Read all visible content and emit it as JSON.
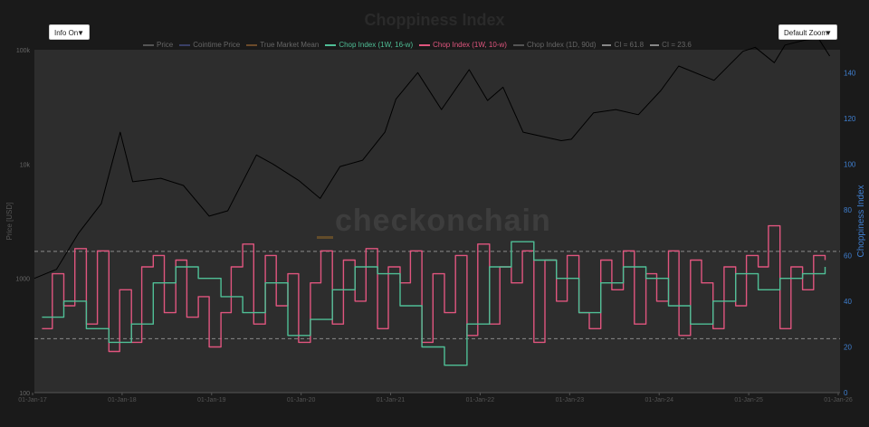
{
  "header": {
    "title": "Choppiness Index",
    "info_toggle": "Info On",
    "zoom_select": "Default Zoom"
  },
  "watermark": "checkonchain",
  "legend": [
    {
      "name": "Price",
      "color": "#555555",
      "dashed": false
    },
    {
      "name": "Cointime Price",
      "color": "#3a3f66",
      "dashed": false
    },
    {
      "name": "True Market Mean",
      "color": "#6b4a2a",
      "dashed": false
    },
    {
      "name": "Chop Index (1W, 16-w)",
      "color": "#4fbf96",
      "dashed": false
    },
    {
      "name": "Chop Index (1W, 10-w)",
      "color": "#e0557e",
      "dashed": false
    },
    {
      "name": "Chop Index (1D, 90d)",
      "color": "#555555",
      "dashed": false
    },
    {
      "name": "CI = 61.8",
      "color": "#888888",
      "dashed": true
    },
    {
      "name": "CI = 23.6",
      "color": "#888888",
      "dashed": true
    }
  ],
  "chart_data": {
    "type": "line",
    "title": "Choppiness Index",
    "x_ticks": [
      "01-Jan-17",
      "01-Jan-18",
      "01-Jan-19",
      "01-Jan-20",
      "01-Jan-21",
      "01-Jan-22",
      "01-Jan-23",
      "01-Jan-24",
      "01-Jan-25",
      "01-Jan-26"
    ],
    "x_range": [
      "2017-01-01",
      "2026-01-01"
    ],
    "y_left": {
      "label": "Price [USD]",
      "scale": "log",
      "ticks": [
        "100k",
        "10k",
        "1000",
        "100"
      ],
      "tick_values": [
        100000,
        10000,
        1000,
        100
      ],
      "range": [
        100,
        100000
      ]
    },
    "y_right": {
      "label": "Choppiness Index",
      "color": "#3f7fd0",
      "ticks": [
        "0",
        "20",
        "40",
        "60",
        "80",
        "100",
        "120",
        "140"
      ],
      "range": [
        0,
        150
      ]
    },
    "reference_lines": [
      {
        "name": "CI = 61.8",
        "value": 61.8
      },
      {
        "name": "CI = 23.6",
        "value": 23.6
      }
    ],
    "series": [
      {
        "name": "Chop Index (1W, 10-w)",
        "color": "#e0557e",
        "axis": "right",
        "x": [
          "2017-02-01",
          "2017-03-15",
          "2017-05-01",
          "2017-06-15",
          "2017-08-01",
          "2017-09-15",
          "2017-11-01",
          "2017-12-15",
          "2018-02-01",
          "2018-03-15",
          "2018-05-01",
          "2018-06-15",
          "2018-08-01",
          "2018-09-15",
          "2018-11-01",
          "2018-12-15",
          "2019-02-01",
          "2019-03-15",
          "2019-05-01",
          "2019-06-15",
          "2019-08-01",
          "2019-09-15",
          "2019-11-01",
          "2019-12-15",
          "2020-02-01",
          "2020-03-15",
          "2020-05-01",
          "2020-06-15",
          "2020-08-01",
          "2020-09-15",
          "2020-11-01",
          "2020-12-15",
          "2021-02-01",
          "2021-03-15",
          "2021-05-01",
          "2021-06-15",
          "2021-08-01",
          "2021-09-15",
          "2021-11-01",
          "2021-12-15",
          "2022-02-01",
          "2022-03-15",
          "2022-05-01",
          "2022-06-15",
          "2022-08-01",
          "2022-09-15",
          "2022-11-01",
          "2022-12-15",
          "2023-02-01",
          "2023-03-15",
          "2023-05-01",
          "2023-06-15",
          "2023-08-01",
          "2023-09-15",
          "2023-11-01",
          "2023-12-15",
          "2024-02-01",
          "2024-03-15",
          "2024-05-01",
          "2024-06-15",
          "2024-08-01",
          "2024-09-15",
          "2024-11-01",
          "2024-12-15",
          "2025-02-01",
          "2025-03-15",
          "2025-05-01",
          "2025-06-15",
          "2025-08-01",
          "2025-09-15",
          "2025-11-01"
        ],
        "y": [
          28,
          52,
          38,
          63,
          30,
          62,
          18,
          45,
          22,
          55,
          60,
          35,
          58,
          33,
          42,
          20,
          35,
          55,
          65,
          30,
          60,
          38,
          52,
          22,
          48,
          62,
          30,
          58,
          40,
          63,
          28,
          55,
          48,
          62,
          22,
          52,
          35,
          60,
          25,
          65,
          30,
          55,
          48,
          62,
          22,
          58,
          40,
          60,
          35,
          28,
          58,
          45,
          62,
          30,
          52,
          40,
          62,
          25,
          58,
          48,
          28,
          55,
          38,
          60,
          55,
          73,
          28,
          55,
          45,
          60,
          58
        ]
      },
      {
        "name": "Chop Index (1W, 16-w)",
        "color": "#4fbf96",
        "axis": "right",
        "x": [
          "2017-02-01",
          "2017-05-01",
          "2017-08-01",
          "2017-11-01",
          "2018-02-01",
          "2018-05-01",
          "2018-08-01",
          "2018-11-01",
          "2019-02-01",
          "2019-05-01",
          "2019-08-01",
          "2019-11-01",
          "2020-02-01",
          "2020-05-01",
          "2020-08-01",
          "2020-11-01",
          "2021-02-01",
          "2021-05-01",
          "2021-08-01",
          "2021-11-01",
          "2022-02-01",
          "2022-05-01",
          "2022-08-01",
          "2022-11-01",
          "2023-02-01",
          "2023-05-01",
          "2023-08-01",
          "2023-11-01",
          "2024-02-01",
          "2024-05-01",
          "2024-08-01",
          "2024-11-01",
          "2025-02-01",
          "2025-05-01",
          "2025-08-01",
          "2025-11-01"
        ],
        "y": [
          33,
          40,
          28,
          22,
          30,
          48,
          55,
          50,
          42,
          35,
          48,
          25,
          32,
          45,
          55,
          52,
          38,
          20,
          12,
          30,
          55,
          66,
          58,
          50,
          35,
          48,
          55,
          50,
          38,
          30,
          40,
          52,
          45,
          50,
          52,
          55
        ]
      },
      {
        "name": "Price",
        "color": "#000000",
        "axis": "left",
        "x": [
          "2017-01-01",
          "2017-04-01",
          "2017-07-01",
          "2017-10-01",
          "2017-12-17",
          "2018-02-06",
          "2018-06-01",
          "2018-09-01",
          "2018-12-15",
          "2019-03-01",
          "2019-06-26",
          "2019-09-01",
          "2019-12-15",
          "2020-03-12",
          "2020-06-01",
          "2020-09-01",
          "2020-12-01",
          "2021-01-15",
          "2021-04-14",
          "2021-07-20",
          "2021-11-10",
          "2022-01-24",
          "2022-03-28",
          "2022-06-18",
          "2022-11-21",
          "2023-01-01",
          "2023-04-01",
          "2023-07-01",
          "2023-10-01",
          "2024-01-01",
          "2024-03-14",
          "2024-08-05",
          "2024-12-01",
          "2025-01-20",
          "2025-04-08",
          "2025-05-22",
          "2025-08-14",
          "2025-10-06",
          "2025-11-20"
        ],
        "y": [
          1000,
          1200,
          2500,
          4500,
          19000,
          7000,
          7500,
          6500,
          3500,
          3900,
          12000,
          10000,
          7200,
          5000,
          9500,
          10800,
          19000,
          37000,
          63000,
          30000,
          67000,
          36000,
          47000,
          19000,
          16000,
          16500,
          28000,
          30000,
          27000,
          44000,
          72000,
          54000,
          97000,
          105000,
          77000,
          110000,
          122000,
          125000,
          88000
        ]
      }
    ]
  }
}
